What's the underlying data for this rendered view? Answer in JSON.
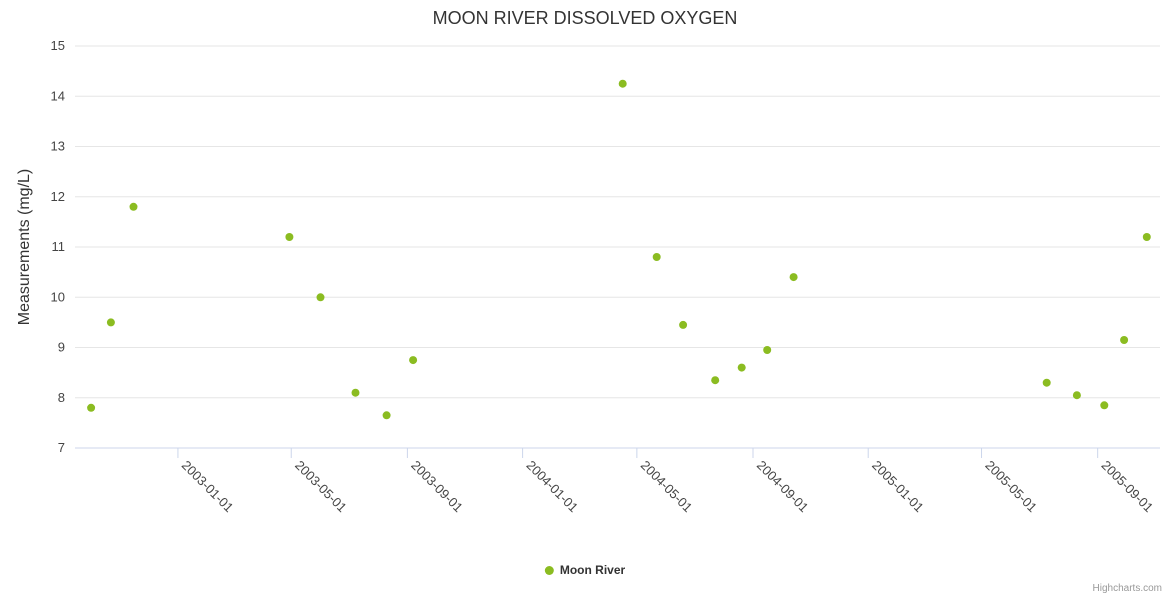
{
  "title": "MOON RIVER DISSOLVED OXYGEN",
  "y_axis_title": "Measurements (mg/L)",
  "legend": {
    "series_label": "Moon River"
  },
  "credits": "Highcharts.com",
  "colors": {
    "point": "#8bbc21",
    "grid": "#e6e6e6",
    "axis_line": "#ccd6eb",
    "tick": "#ccd6eb",
    "label": "#444444",
    "title": "#333333"
  },
  "chart_data": {
    "type": "scatter",
    "title": "MOON RIVER DISSOLVED OXYGEN",
    "xlabel": "",
    "ylabel": "Measurements (mg/L)",
    "ylim": [
      7,
      15
    ],
    "y_ticks": [
      7,
      8,
      9,
      10,
      11,
      12,
      13,
      14,
      15
    ],
    "x_range": [
      "2002-09-14",
      "2005-11-06"
    ],
    "x_ticks": [
      "2003-01-01",
      "2003-05-01",
      "2003-09-01",
      "2004-01-01",
      "2004-05-01",
      "2004-09-01",
      "2005-01-01",
      "2005-05-01",
      "2005-09-01"
    ],
    "grid": "horizontal",
    "legend_position": "bottom-center",
    "series": [
      {
        "name": "Moon River",
        "color": "#8bbc21",
        "points": [
          {
            "x": "2002-10-01",
            "y": 7.8
          },
          {
            "x": "2002-10-22",
            "y": 9.5
          },
          {
            "x": "2002-11-15",
            "y": 11.8
          },
          {
            "x": "2003-04-29",
            "y": 11.2
          },
          {
            "x": "2003-06-01",
            "y": 10.0
          },
          {
            "x": "2003-07-08",
            "y": 8.1
          },
          {
            "x": "2003-08-10",
            "y": 7.65
          },
          {
            "x": "2003-09-07",
            "y": 8.75
          },
          {
            "x": "2004-04-16",
            "y": 14.25
          },
          {
            "x": "2004-05-22",
            "y": 10.8
          },
          {
            "x": "2004-06-19",
            "y": 9.45
          },
          {
            "x": "2004-07-23",
            "y": 8.35
          },
          {
            "x": "2004-08-20",
            "y": 8.6
          },
          {
            "x": "2004-09-16",
            "y": 8.95
          },
          {
            "x": "2004-10-14",
            "y": 10.4
          },
          {
            "x": "2005-07-09",
            "y": 8.3
          },
          {
            "x": "2005-08-10",
            "y": 8.05
          },
          {
            "x": "2005-09-08",
            "y": 7.85
          },
          {
            "x": "2005-09-29",
            "y": 9.15
          },
          {
            "x": "2005-10-23",
            "y": 11.2
          }
        ]
      }
    ]
  }
}
